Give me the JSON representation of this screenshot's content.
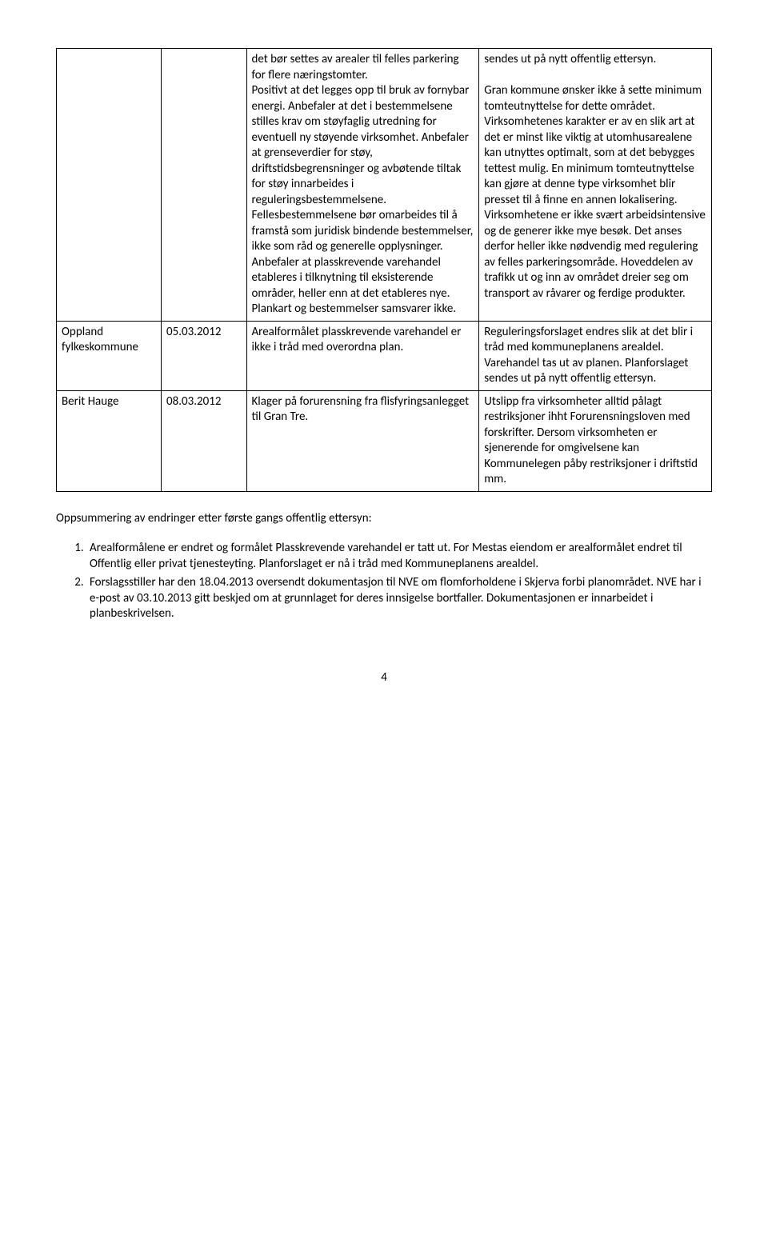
{
  "table": {
    "rows": [
      {
        "c1": "",
        "c2": "",
        "c3": "det bør settes av arealer til felles parkering for flere næringstomter.\nPositivt at det legges opp til bruk av fornybar energi. Anbefaler at det i bestemmelsene stilles krav om støyfaglig utredning for eventuell ny støyende virksomhet. Anbefaler at grenseverdier for støy, driftstidsbegrensninger og avbøtende tiltak for støy innarbeides i reguleringsbestemmelsene. Fellesbestemmelsene bør omarbeides til å framstå som juridisk bindende bestemmelser, ikke som råd og generelle opplysninger. Anbefaler at plasskrevende varehandel etableres i tilknytning til eksisterende områder, heller enn at det etableres nye. Plankart og bestemmelser samsvarer ikke.",
        "c4": "sendes ut på nytt offentlig ettersyn.\n\nGran kommune ønsker ikke å sette minimum tomteutnyttelse for dette området. Virksomhetenes karakter er av en slik art at det er minst like viktig at utomhusarealene kan utnyttes optimalt, som at det bebygges tettest mulig. En minimum tomteutnyttelse kan gjøre at denne type virksomhet blir presset til å finne en annen lokalisering. Virksomhetene er ikke svært arbeidsintensive og de generer ikke mye besøk. Det anses derfor heller ikke nødvendig med regulering av felles parkeringsområde. Hoveddelen av trafikk ut og inn av området dreier seg om transport av råvarer og ferdige produkter."
      },
      {
        "c1": "Oppland fylkeskommune",
        "c2": "05.03.2012",
        "c3": "Arealformålet plasskrevende varehandel er ikke i tråd med overordna plan.",
        "c4": "Reguleringsforslaget endres slik at det blir i tråd med kommuneplanens arealdel. Varehandel tas ut av planen. Planforslaget sendes ut på nytt offentlig ettersyn."
      },
      {
        "c1": "Berit Hauge",
        "c2": "08.03.2012",
        "c3": "Klager på forurensning fra flisfyringsanlegget til Gran Tre.",
        "c4": "Utslipp fra virksomheter alltid pålagt restriksjoner ihht Forurensningsloven med forskrifter. Dersom virksomheten er sjenerende for omgivelsene kan Kommunelegen påby restriksjoner i driftstid mm."
      }
    ]
  },
  "summary_heading": "Oppsummering av endringer etter første gangs offentlig ettersyn:",
  "list_items": [
    "Arealformålene er endret og formålet Plasskrevende varehandel er tatt ut. For Mestas eiendom er arealformålet endret til Offentlig eller privat tjenesteyting. Planforslaget er nå i tråd med Kommuneplanens arealdel.",
    "Forslagsstiller har den 18.04.2013 oversendt dokumentasjon til NVE om flomforholdene i Skjerva forbi planområdet. NVE har i e-post av 03.10.2013 gitt beskjed om at grunnlaget for deres innsigelse bortfaller. Dokumentasjonen er innarbeidet i planbeskrivelsen."
  ],
  "page_number": "4"
}
